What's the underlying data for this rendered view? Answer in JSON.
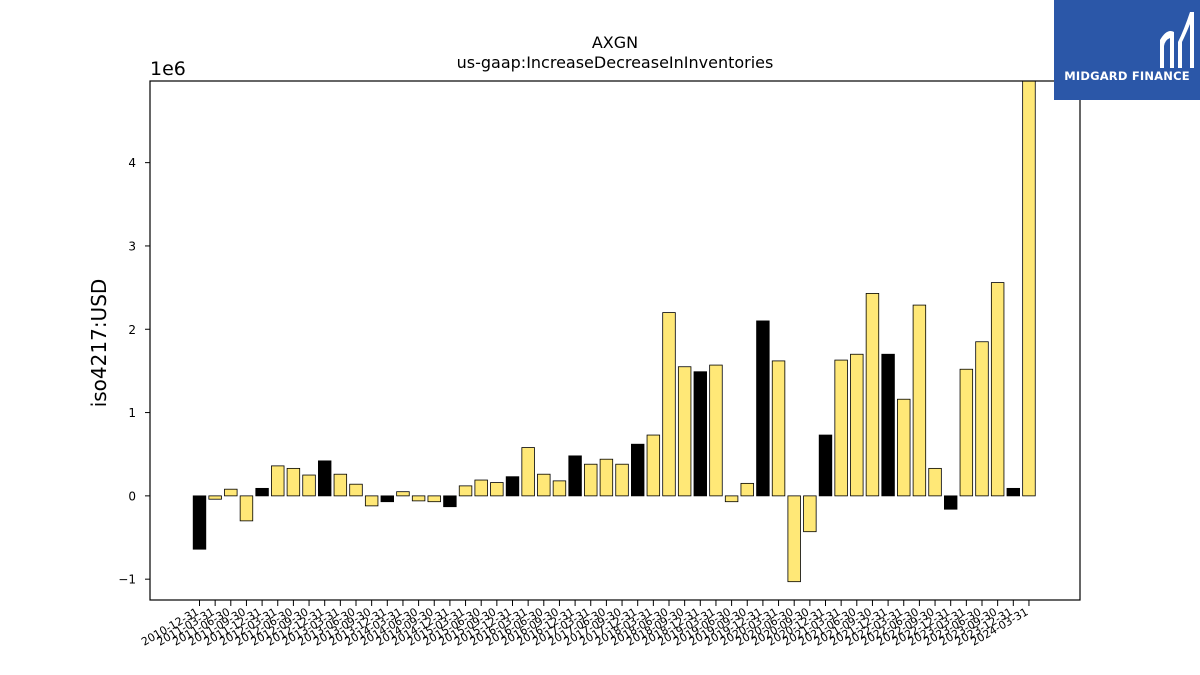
{
  "chart_data": {
    "type": "bar",
    "title": "AXGN",
    "subtitle": "us-gaap:IncreaseDecreaseInInventories",
    "ylabel": "iso4217:USD",
    "xlabel": "",
    "y_scale_label": "1e6",
    "ylim": [
      -1.25,
      4.98
    ],
    "y_ticks": [
      -1,
      0,
      1,
      2,
      3,
      4
    ],
    "y_tick_labels": [
      "−1",
      "0",
      "1",
      "2",
      "3",
      "4"
    ],
    "grid": false,
    "categories": [
      "2010-12-31",
      "2011-03-31",
      "2011-06-30",
      "2011-09-30",
      "2011-12-31",
      "2012-03-31",
      "2012-06-30",
      "2012-09-30",
      "2012-12-31",
      "2013-03-31",
      "2013-06-30",
      "2013-09-30",
      "2013-12-31",
      "2014-03-31",
      "2014-06-30",
      "2014-09-30",
      "2014-12-31",
      "2015-03-31",
      "2015-06-30",
      "2015-09-30",
      "2015-12-31",
      "2016-03-31",
      "2016-06-30",
      "2016-09-30",
      "2016-12-31",
      "2017-03-31",
      "2017-06-30",
      "2017-09-30",
      "2017-12-31",
      "2018-03-31",
      "2018-06-30",
      "2018-09-30",
      "2018-12-31",
      "2019-03-31",
      "2019-06-30",
      "2019-09-30",
      "2019-12-31",
      "2020-03-31",
      "2020-06-30",
      "2020-09-30",
      "2020-12-31",
      "2021-03-31",
      "2021-06-30",
      "2021-09-30",
      "2021-12-31",
      "2022-03-31",
      "2022-06-30",
      "2022-09-30",
      "2022-12-31",
      "2023-03-31",
      "2023-06-30",
      "2023-09-30",
      "2023-12-31",
      "2024-03-31"
    ],
    "values": [
      -0.64,
      -0.04,
      0.08,
      -0.3,
      0.09,
      0.36,
      0.33,
      0.25,
      0.42,
      0.26,
      0.14,
      -0.12,
      -0.07,
      0.05,
      -0.06,
      -0.07,
      -0.13,
      0.12,
      0.19,
      0.16,
      0.23,
      0.58,
      0.26,
      0.18,
      0.48,
      0.38,
      0.44,
      0.38,
      0.62,
      0.73,
      2.2,
      1.55,
      1.49,
      1.57,
      -0.07,
      0.15,
      2.1,
      1.62,
      -1.03,
      -0.43,
      0.73,
      1.63,
      1.7,
      2.43,
      1.7,
      1.16,
      2.29,
      0.33,
      -0.16,
      1.52,
      1.85,
      2.56,
      0.09,
      4.98
    ],
    "bar_colors": [
      "#000000",
      "#ffe877",
      "#ffe877",
      "#ffe877",
      "#000000",
      "#ffe877",
      "#ffe877",
      "#ffe877",
      "#000000",
      "#ffe877",
      "#ffe877",
      "#ffe877",
      "#000000",
      "#ffe877",
      "#ffe877",
      "#ffe877",
      "#000000",
      "#ffe877",
      "#ffe877",
      "#ffe877",
      "#000000",
      "#ffe877",
      "#ffe877",
      "#ffe877",
      "#000000",
      "#ffe877",
      "#ffe877",
      "#ffe877",
      "#000000",
      "#ffe877",
      "#ffe877",
      "#ffe877",
      "#000000",
      "#ffe877",
      "#ffe877",
      "#ffe877",
      "#000000",
      "#ffe877",
      "#ffe877",
      "#ffe877",
      "#000000",
      "#ffe877",
      "#ffe877",
      "#ffe877",
      "#000000",
      "#ffe877",
      "#ffe877",
      "#ffe877",
      "#000000",
      "#ffe877",
      "#ffe877",
      "#ffe877",
      "#000000",
      "#ffe877"
    ]
  },
  "logo": {
    "text": "MIDGARD FINANCE",
    "background": "#2b57a8"
  }
}
